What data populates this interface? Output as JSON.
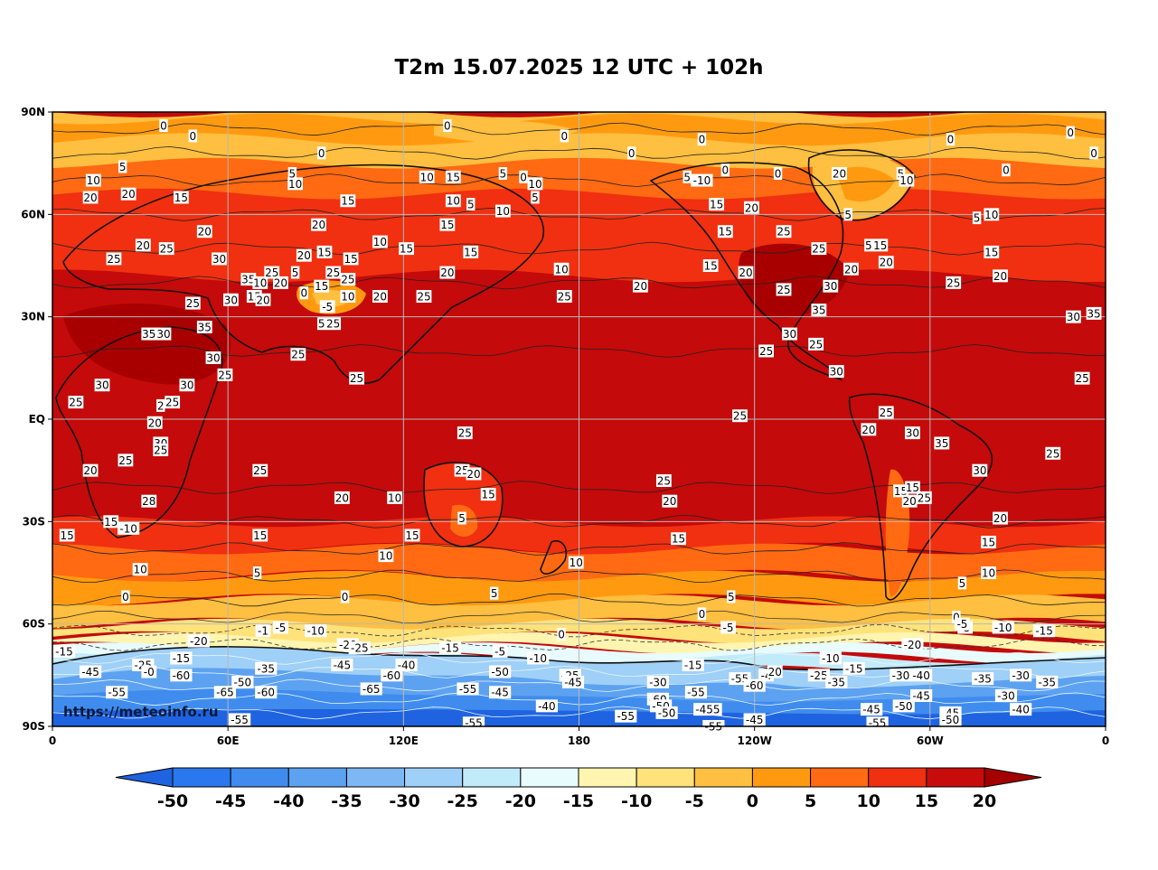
{
  "title": "T2m 15.07.2025 12 UTC + 102h",
  "watermark": "https://meteoinfo.ru",
  "axes": {
    "lat_labels": [
      "90N",
      "60N",
      "30N",
      "EQ",
      "30S",
      "60S",
      "90S"
    ],
    "lon_labels": [
      "0",
      "60E",
      "120E",
      "180",
      "120W",
      "60W",
      "0"
    ]
  },
  "colorbar": {
    "levels": [
      "-50",
      "-45",
      "-40",
      "-35",
      "-30",
      "-25",
      "-20",
      "-15",
      "-10",
      "-5",
      "0",
      "5",
      "10",
      "15",
      "20"
    ],
    "colors": [
      "#1f63e0",
      "#2b78ee",
      "#3f8cee",
      "#5da2f0",
      "#7db8f4",
      "#9fd0f7",
      "#c2ebfa",
      "#e8fbfd",
      "#fff5b0",
      "#ffe27a",
      "#ffbf40",
      "#ff9a10",
      "#ff6a12",
      "#f03010",
      "#c80c0c",
      "#a50000"
    ]
  },
  "contour_labels": [
    {
      "t": "0",
      "lon": 38,
      "lat": 86
    },
    {
      "t": "0",
      "lon": 48,
      "lat": 83
    },
    {
      "t": "0",
      "lon": 135,
      "lat": 86
    },
    {
      "t": "0",
      "lon": 175,
      "lat": 83
    },
    {
      "t": "0",
      "lon": 92,
      "lat": 78
    },
    {
      "t": "0",
      "lon": 198,
      "lat": 78
    },
    {
      "t": "0",
      "lon": 222,
      "lat": 82
    },
    {
      "t": "0",
      "lon": 230,
      "lat": 73
    },
    {
      "t": "0",
      "lon": 248,
      "lat": 72
    },
    {
      "t": "0",
      "lon": 307,
      "lat": 82
    },
    {
      "t": "0",
      "lon": 348,
      "lat": 84
    },
    {
      "t": "0",
      "lon": 356,
      "lat": 78
    },
    {
      "t": "0",
      "lon": 326,
      "lat": 73
    },
    {
      "t": "10",
      "lon": 14,
      "lat": 70
    },
    {
      "t": "5",
      "lon": 24,
      "lat": 74
    },
    {
      "t": "20",
      "lon": 13,
      "lat": 65
    },
    {
      "t": "20",
      "lon": 26,
      "lat": 66
    },
    {
      "t": "15",
      "lon": 44,
      "lat": 65
    },
    {
      "t": "20",
      "lon": 52,
      "lat": 55
    },
    {
      "t": "25",
      "lon": 21,
      "lat": 47
    },
    {
      "t": "20",
      "lon": 31,
      "lat": 51
    },
    {
      "t": "25",
      "lon": 39,
      "lat": 50
    },
    {
      "t": "30",
      "lon": 57,
      "lat": 47
    },
    {
      "t": "35",
      "lon": 67,
      "lat": 41
    },
    {
      "t": "25",
      "lon": 48,
      "lat": 34
    },
    {
      "t": "30",
      "lon": 61,
      "lat": 35
    },
    {
      "t": "25",
      "lon": 75,
      "lat": 43
    },
    {
      "t": "15",
      "lon": 69,
      "lat": 36
    },
    {
      "t": "20",
      "lon": 72,
      "lat": 35
    },
    {
      "t": "10",
      "lon": 71,
      "lat": 40
    },
    {
      "t": "20",
      "lon": 78,
      "lat": 40
    },
    {
      "t": "5",
      "lon": 83,
      "lat": 43
    },
    {
      "t": "20",
      "lon": 86,
      "lat": 48
    },
    {
      "t": "15",
      "lon": 93,
      "lat": 49
    },
    {
      "t": "25",
      "lon": 96,
      "lat": 43
    },
    {
      "t": "15",
      "lon": 102,
      "lat": 47
    },
    {
      "t": "25",
      "lon": 101,
      "lat": 41
    },
    {
      "t": "0",
      "lon": 86,
      "lat": 37
    },
    {
      "t": "15",
      "lon": 92,
      "lat": 39
    },
    {
      "t": "-5",
      "lon": 94,
      "lat": 33
    },
    {
      "t": "5",
      "lon": 92,
      "lat": 28
    },
    {
      "t": "25",
      "lon": 96,
      "lat": 28
    },
    {
      "t": "10",
      "lon": 101,
      "lat": 36
    },
    {
      "t": "20",
      "lon": 112,
      "lat": 36
    },
    {
      "t": "10",
      "lon": 83,
      "lat": 69
    },
    {
      "t": "5",
      "lon": 82,
      "lat": 72
    },
    {
      "t": "15",
      "lon": 101,
      "lat": 64
    },
    {
      "t": "20",
      "lon": 91,
      "lat": 57
    },
    {
      "t": "10",
      "lon": 112,
      "lat": 52
    },
    {
      "t": "15",
      "lon": 121,
      "lat": 50
    },
    {
      "t": "10",
      "lon": 128,
      "lat": 71
    },
    {
      "t": "15",
      "lon": 137,
      "lat": 71
    },
    {
      "t": "10",
      "lon": 137,
      "lat": 64
    },
    {
      "t": "5",
      "lon": 143,
      "lat": 63
    },
    {
      "t": "15",
      "lon": 135,
      "lat": 57
    },
    {
      "t": "20",
      "lon": 135,
      "lat": 43
    },
    {
      "t": "15",
      "lon": 143,
      "lat": 49
    },
    {
      "t": "25",
      "lon": 127,
      "lat": 36
    },
    {
      "t": "5",
      "lon": 154,
      "lat": 72
    },
    {
      "t": "0",
      "lon": 161,
      "lat": 71
    },
    {
      "t": "10",
      "lon": 165,
      "lat": 69
    },
    {
      "t": "5",
      "lon": 165,
      "lat": 65
    },
    {
      "t": "10",
      "lon": 154,
      "lat": 61
    },
    {
      "t": "10",
      "lon": 174,
      "lat": 44
    },
    {
      "t": "25",
      "lon": 175,
      "lat": 36
    },
    {
      "t": "20",
      "lon": 201,
      "lat": 39
    },
    {
      "t": "35",
      "lon": 33,
      "lat": 25
    },
    {
      "t": "30",
      "lon": 38,
      "lat": 25
    },
    {
      "t": "35",
      "lon": 52,
      "lat": 27
    },
    {
      "t": "30",
      "lon": 55,
      "lat": 18
    },
    {
      "t": "25",
      "lon": 59,
      "lat": 13
    },
    {
      "t": "30",
      "lon": 17,
      "lat": 10
    },
    {
      "t": "30",
      "lon": 46,
      "lat": 10
    },
    {
      "t": "25",
      "lon": 8,
      "lat": 5
    },
    {
      "t": "25",
      "lon": 41,
      "lat": 5
    },
    {
      "t": "2",
      "lon": 37,
      "lat": 4
    },
    {
      "t": "20",
      "lon": 35,
      "lat": -1
    },
    {
      "t": "30",
      "lon": 37,
      "lat": -7
    },
    {
      "t": "25",
      "lon": 37,
      "lat": -9
    },
    {
      "t": "25",
      "lon": 25,
      "lat": -12
    },
    {
      "t": "20",
      "lon": 13,
      "lat": -15
    },
    {
      "t": "25",
      "lon": 71,
      "lat": -15
    },
    {
      "t": "28",
      "lon": 33,
      "lat": -24
    },
    {
      "t": "20",
      "lon": 99,
      "lat": -23
    },
    {
      "t": "15",
      "lon": 20,
      "lat": -30
    },
    {
      "t": "-10",
      "lon": 26,
      "lat": -32
    },
    {
      "t": "15",
      "lon": 5,
      "lat": -34
    },
    {
      "t": "15",
      "lon": 71,
      "lat": -34
    },
    {
      "t": "10",
      "lon": 30,
      "lat": -44
    },
    {
      "t": "5",
      "lon": 70,
      "lat": -45
    },
    {
      "t": "0",
      "lon": 25,
      "lat": -52
    },
    {
      "t": "0",
      "lon": 100,
      "lat": -52
    },
    {
      "t": "25",
      "lon": 84,
      "lat": 19
    },
    {
      "t": "25",
      "lon": 104,
      "lat": 12
    },
    {
      "t": "25",
      "lon": 141,
      "lat": -4
    },
    {
      "t": "25",
      "lon": 140,
      "lat": -15
    },
    {
      "t": "20",
      "lon": 144,
      "lat": -16
    },
    {
      "t": "10",
      "lon": 117,
      "lat": -23
    },
    {
      "t": "15",
      "lon": 149,
      "lat": -22
    },
    {
      "t": "5",
      "lon": 140,
      "lat": -29
    },
    {
      "t": "15",
      "lon": 123,
      "lat": -34
    },
    {
      "t": "10",
      "lon": 114,
      "lat": -40
    },
    {
      "t": "25",
      "lon": 209,
      "lat": -18
    },
    {
      "t": "20",
      "lon": 211,
      "lat": -24
    },
    {
      "t": "15",
      "lon": 214,
      "lat": -35
    },
    {
      "t": "10",
      "lon": 179,
      "lat": -42
    },
    {
      "t": "5",
      "lon": 151,
      "lat": -51
    },
    {
      "t": "5",
      "lon": 232,
      "lat": -52
    },
    {
      "t": "0",
      "lon": 222,
      "lat": -57
    },
    {
      "t": "-5",
      "lon": 231,
      "lat": -61
    },
    {
      "t": "0",
      "lon": 174,
      "lat": -63
    },
    {
      "t": "-10",
      "lon": 90,
      "lat": -62
    },
    {
      "t": "-5",
      "lon": 78,
      "lat": -61
    },
    {
      "t": "-1",
      "lon": 72,
      "lat": -62
    },
    {
      "t": "-20",
      "lon": 50,
      "lat": -65
    },
    {
      "t": "-15",
      "lon": 4,
      "lat": -68
    },
    {
      "t": "-15",
      "lon": 44,
      "lat": -70
    },
    {
      "t": "-20",
      "lon": 101,
      "lat": -66
    },
    {
      "t": "-25",
      "lon": 105,
      "lat": -67
    },
    {
      "t": "-15",
      "lon": 136,
      "lat": -67
    },
    {
      "t": "-5",
      "lon": 153,
      "lat": -68
    },
    {
      "t": "-10",
      "lon": 166,
      "lat": -70
    },
    {
      "t": "-15",
      "lon": 219,
      "lat": -72
    },
    {
      "t": "-10",
      "lon": 266,
      "lat": -70
    },
    {
      "t": "-15",
      "lon": 274,
      "lat": -73
    },
    {
      "t": "-25",
      "lon": 262,
      "lat": -75
    },
    {
      "t": "-20",
      "lon": 294,
      "lat": -66
    },
    {
      "t": "-5",
      "lon": 312,
      "lat": -61
    },
    {
      "t": "-10",
      "lon": 325,
      "lat": -61
    },
    {
      "t": "-15",
      "lon": 339,
      "lat": -62
    },
    {
      "t": "-45",
      "lon": 13,
      "lat": -74
    },
    {
      "t": "-25",
      "lon": 31,
      "lat": -72
    },
    {
      "t": "-0",
      "lon": 33,
      "lat": -74
    },
    {
      "t": "-60",
      "lon": 44,
      "lat": -75
    },
    {
      "t": "-50",
      "lon": 65,
      "lat": -77
    },
    {
      "t": "-55",
      "lon": 22,
      "lat": -80
    },
    {
      "t": "-65",
      "lon": 59,
      "lat": -80
    },
    {
      "t": "-60",
      "lon": 73,
      "lat": -80
    },
    {
      "t": "-35",
      "lon": 73,
      "lat": -73
    },
    {
      "t": "-45",
      "lon": 99,
      "lat": -72
    },
    {
      "t": "-60",
      "lon": 116,
      "lat": -75
    },
    {
      "t": "-40",
      "lon": 121,
      "lat": -72
    },
    {
      "t": "-65",
      "lon": 109,
      "lat": -79
    },
    {
      "t": "-55",
      "lon": 142,
      "lat": -79
    },
    {
      "t": "-45",
      "lon": 153,
      "lat": -80
    },
    {
      "t": "-50",
      "lon": 153,
      "lat": -74
    },
    {
      "t": "-25",
      "lon": 177,
      "lat": -75
    },
    {
      "t": "-45",
      "lon": 178,
      "lat": -77
    },
    {
      "t": "-40",
      "lon": 169,
      "lat": -84
    },
    {
      "t": "-30",
      "lon": 207,
      "lat": -77
    },
    {
      "t": "-60",
      "lon": 207,
      "lat": -82
    },
    {
      "t": "-55",
      "lon": 220,
      "lat": -80
    },
    {
      "t": "-50",
      "lon": 208,
      "lat": -84
    },
    {
      "t": "-50",
      "lon": 210,
      "lat": -86
    },
    {
      "t": "-455",
      "lon": 224,
      "lat": -85
    },
    {
      "t": "-55",
      "lon": 196,
      "lat": -87
    },
    {
      "t": "-55",
      "lon": 235,
      "lat": -76
    },
    {
      "t": "-60",
      "lon": 240,
      "lat": -78
    },
    {
      "t": "-4",
      "lon": 244,
      "lat": -75
    },
    {
      "t": "20",
      "lon": 247,
      "lat": -74
    },
    {
      "t": "-35",
      "lon": 268,
      "lat": -77
    },
    {
      "t": "-30",
      "lon": 290,
      "lat": -75
    },
    {
      "t": "-40",
      "lon": 297,
      "lat": -75
    },
    {
      "t": "-45",
      "lon": 297,
      "lat": -81
    },
    {
      "t": "-50",
      "lon": 291,
      "lat": -84
    },
    {
      "t": "-45",
      "lon": 280,
      "lat": -85
    },
    {
      "t": "-45",
      "lon": 307,
      "lat": -86
    },
    {
      "t": "-50",
      "lon": 307,
      "lat": -88
    },
    {
      "t": "-35",
      "lon": 318,
      "lat": -76
    },
    {
      "t": "-30",
      "lon": 331,
      "lat": -75
    },
    {
      "t": "-35",
      "lon": 340,
      "lat": -77
    },
    {
      "t": "-30",
      "lon": 326,
      "lat": -81
    },
    {
      "t": "-40",
      "lon": 331,
      "lat": -85
    },
    {
      "t": "-55",
      "lon": 282,
      "lat": -89
    },
    {
      "t": "-55",
      "lon": 144,
      "lat": -89
    },
    {
      "t": "-55",
      "lon": 64,
      "lat": -88
    },
    {
      "t": "-45",
      "lon": 240,
      "lat": -88
    },
    {
      "t": "-55",
      "lon": 226,
      "lat": -90
    },
    {
      "t": "-10",
      "lon": 222,
      "lat": 70
    },
    {
      "t": "5",
      "lon": 217,
      "lat": 71
    },
    {
      "t": "15",
      "lon": 227,
      "lat": 63
    },
    {
      "t": "20",
      "lon": 239,
      "lat": 62
    },
    {
      "t": "15",
      "lon": 230,
      "lat": 55
    },
    {
      "t": "25",
      "lon": 250,
      "lat": 55
    },
    {
      "t": "15",
      "lon": 225,
      "lat": 45
    },
    {
      "t": "20",
      "lon": 237,
      "lat": 43
    },
    {
      "t": "25",
      "lon": 250,
      "lat": 38
    },
    {
      "t": "25",
      "lon": 262,
      "lat": 50
    },
    {
      "t": "30",
      "lon": 266,
      "lat": 39
    },
    {
      "t": "20",
      "lon": 269,
      "lat": 72
    },
    {
      "t": "5",
      "lon": 272,
      "lat": 60
    },
    {
      "t": "5",
      "lon": 279,
      "lat": 51
    },
    {
      "t": "15",
      "lon": 283,
      "lat": 51
    },
    {
      "t": "20",
      "lon": 285,
      "lat": 46
    },
    {
      "t": "20",
      "lon": 273,
      "lat": 44
    },
    {
      "t": "35",
      "lon": 262,
      "lat": 32
    },
    {
      "t": "30",
      "lon": 252,
      "lat": 25
    },
    {
      "t": "25",
      "lon": 261,
      "lat": 22
    },
    {
      "t": "25",
      "lon": 244,
      "lat": 20
    },
    {
      "t": "30",
      "lon": 268,
      "lat": 14
    },
    {
      "t": "25",
      "lon": 235,
      "lat": 1
    },
    {
      "t": "5",
      "lon": 290,
      "lat": 72
    },
    {
      "t": "10",
      "lon": 292,
      "lat": 70
    },
    {
      "t": "5",
      "lon": 316,
      "lat": 59
    },
    {
      "t": "10",
      "lon": 321,
      "lat": 60
    },
    {
      "t": "15",
      "lon": 321,
      "lat": 49
    },
    {
      "t": "20",
      "lon": 324,
      "lat": 42
    },
    {
      "t": "25",
      "lon": 308,
      "lat": 40
    },
    {
      "t": "30",
      "lon": 349,
      "lat": 30
    },
    {
      "t": "35",
      "lon": 356,
      "lat": 31
    },
    {
      "t": "25",
      "lon": 352,
      "lat": 12
    },
    {
      "t": "25",
      "lon": 285,
      "lat": 2
    },
    {
      "t": "20",
      "lon": 279,
      "lat": -3
    },
    {
      "t": "30",
      "lon": 294,
      "lat": -4
    },
    {
      "t": "35",
      "lon": 304,
      "lat": -7
    },
    {
      "t": "30",
      "lon": 317,
      "lat": -15
    },
    {
      "t": "25",
      "lon": 342,
      "lat": -10
    },
    {
      "t": "15",
      "lon": 290,
      "lat": -21
    },
    {
      "t": "15",
      "lon": 294,
      "lat": -20
    },
    {
      "t": "20",
      "lon": 293,
      "lat": -24
    },
    {
      "t": "25",
      "lon": 298,
      "lat": -23
    },
    {
      "t": "20",
      "lon": 324,
      "lat": -29
    },
    {
      "t": "15",
      "lon": 320,
      "lat": -36
    },
    {
      "t": "10",
      "lon": 320,
      "lat": -45
    },
    {
      "t": "5",
      "lon": 311,
      "lat": -48
    },
    {
      "t": "0",
      "lon": 309,
      "lat": -58
    },
    {
      "t": "-5",
      "lon": 311,
      "lat": -60
    }
  ]
}
